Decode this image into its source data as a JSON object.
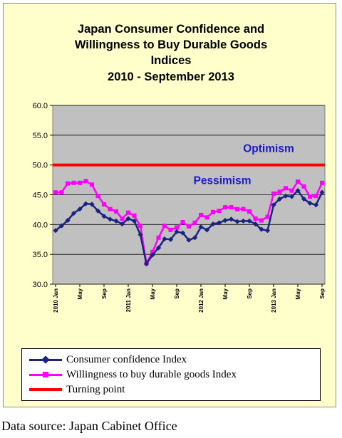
{
  "chart_data": {
    "type": "line",
    "title_lines": [
      "Japan Consumer Confidence and",
      "Willingness to Buy Durable Goods",
      "Indices",
      "2010 -  September 2013"
    ],
    "xlabel": "",
    "ylabel": "",
    "ylim": [
      30,
      60
    ],
    "yticks": [
      "30.0",
      "35.0",
      "40.0",
      "45.0",
      "50.0",
      "55.0",
      "60.0"
    ],
    "grid": "horizontal",
    "legend_position": "bottom",
    "x": [
      "2010 Jan",
      "2010 Feb",
      "2010 Mar",
      "2010 Apr",
      "2010 May",
      "2010 Jun",
      "2010 Jul",
      "2010 Aug",
      "2010 Sep",
      "2010 Oct",
      "2010 Nov",
      "2010 Dec",
      "2011 Jan",
      "2011 Feb",
      "2011 Mar",
      "2011 Apr",
      "2011 May",
      "2011 Jun",
      "2011 Jul",
      "2011 Aug",
      "2011 Sep",
      "2011 Oct",
      "2011 Nov",
      "2011 Dec",
      "2012 Jan",
      "2012 Feb",
      "2012 Mar",
      "2012 Apr",
      "2012 May",
      "2012 Jun",
      "2012 Jul",
      "2012 Aug",
      "2012 Sep",
      "2012 Oct",
      "2012 Nov",
      "2012 Dec",
      "2013 Jan",
      "2013 Feb",
      "2013 Mar",
      "2013 Apr",
      "2013 May",
      "2013 Jun",
      "2013 Jul",
      "2013 Aug",
      "2013 Sep"
    ],
    "x_tick_labels": [
      {
        "index": 0,
        "label": "2010 Jan"
      },
      {
        "index": 4,
        "label": "May"
      },
      {
        "index": 8,
        "label": "Sep"
      },
      {
        "index": 12,
        "label": "2011 Jan"
      },
      {
        "index": 16,
        "label": "May"
      },
      {
        "index": 20,
        "label": "Sep"
      },
      {
        "index": 24,
        "label": "2012 Jan"
      },
      {
        "index": 28,
        "label": "May"
      },
      {
        "index": 32,
        "label": "Sep"
      },
      {
        "index": 36,
        "label": "2013 Jan"
      },
      {
        "index": 40,
        "label": "May"
      },
      {
        "index": 44,
        "label": "Sep"
      }
    ],
    "series": [
      {
        "name": "Consumer confidence Index",
        "color": "#1a237e",
        "values": [
          39.0,
          39.8,
          40.7,
          41.9,
          42.6,
          43.5,
          43.4,
          42.3,
          41.4,
          40.9,
          40.6,
          40.1,
          41.0,
          40.6,
          38.3,
          33.4,
          34.9,
          36.1,
          37.6,
          37.5,
          38.8,
          38.6,
          37.4,
          37.8,
          39.6,
          39.1,
          40.1,
          40.3,
          40.7,
          40.9,
          40.5,
          40.6,
          40.6,
          40.1,
          39.2,
          39.0,
          43.3,
          44.3,
          44.8,
          44.7,
          45.7,
          44.3,
          43.6,
          43.3,
          45.4
        ]
      },
      {
        "name": "Willingness to buy durable goods Index",
        "color": "#ff00ff",
        "values": [
          45.4,
          45.4,
          46.9,
          47.0,
          47.0,
          47.3,
          46.7,
          44.8,
          43.4,
          42.6,
          42.2,
          41.0,
          42.0,
          41.5,
          39.8,
          33.5,
          35.4,
          37.8,
          39.8,
          39.1,
          39.5,
          40.4,
          39.7,
          40.3,
          41.6,
          41.2,
          42.1,
          42.3,
          42.9,
          42.9,
          42.6,
          42.6,
          42.2,
          41.0,
          40.7,
          41.3,
          45.2,
          45.5,
          46.1,
          45.7,
          47.2,
          46.4,
          44.7,
          44.8,
          47.0
        ]
      },
      {
        "name": "Turning point",
        "color": "#ff0000",
        "values": [
          50,
          50,
          50,
          50,
          50,
          50,
          50,
          50,
          50,
          50,
          50,
          50,
          50,
          50,
          50,
          50,
          50,
          50,
          50,
          50,
          50,
          50,
          50,
          50,
          50,
          50,
          50,
          50,
          50,
          50,
          50,
          50,
          50,
          50,
          50,
          50,
          50,
          50,
          50,
          50,
          50,
          50,
          50,
          50,
          50
        ]
      }
    ],
    "annotations": [
      "Optimism",
      "Pessimism"
    ]
  },
  "source_text": "Data source: Japan Cabinet Office"
}
